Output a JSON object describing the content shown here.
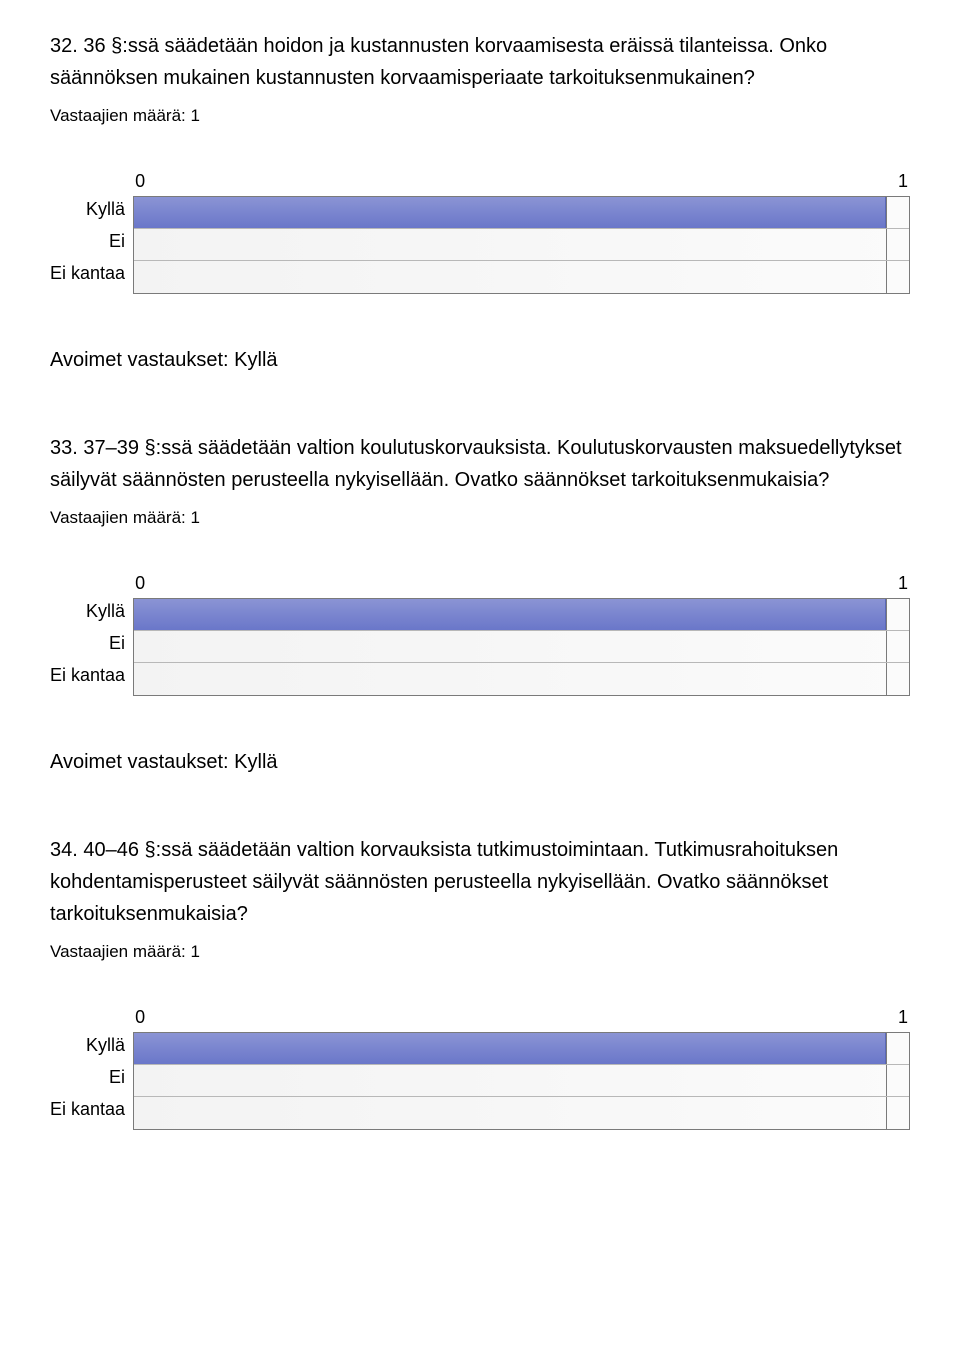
{
  "sections": [
    {
      "question": "32. 36 §:ssä säädetään hoidon ja kustannusten korvaamisesta eräissä tilanteissa. Onko säännöksen mukainen kustannusten korvaamisperiaate tarkoituksenmukainen?",
      "respondent_label": "Vastaajien määrä: 1",
      "chart": {
        "type": "bar",
        "x_ticks": [
          "0",
          "1"
        ],
        "xlim": [
          0,
          1
        ],
        "categories": [
          "Kyllä",
          "Ei",
          "Ei kantaa"
        ],
        "values": [
          1,
          0,
          0
        ],
        "bar_color": "#7a85cf",
        "background_gradient_from": "#f3f3f3",
        "background_gradient_to": "#fbfbfb",
        "border_color": "#7a7a7a",
        "row_divider_color": "#b8b8b8",
        "label_fontsize": 18,
        "tick_right_fraction": 0.97
      },
      "open_answers_label": "Avoimet vastaukset: Kyllä"
    },
    {
      "question": "33. 37–39 §:ssä säädetään valtion koulutuskorvauksista. Koulutuskorvausten maksuedellytykset säilyvät säännösten perusteella nykyisellään. Ovatko säännökset tarkoituksenmukaisia?",
      "respondent_label": "Vastaajien määrä: 1",
      "chart": {
        "type": "bar",
        "x_ticks": [
          "0",
          "1"
        ],
        "xlim": [
          0,
          1
        ],
        "categories": [
          "Kyllä",
          "Ei",
          "Ei kantaa"
        ],
        "values": [
          1,
          0,
          0
        ],
        "bar_color": "#7a85cf",
        "background_gradient_from": "#f3f3f3",
        "background_gradient_to": "#fbfbfb",
        "border_color": "#7a7a7a",
        "row_divider_color": "#b8b8b8",
        "label_fontsize": 18,
        "tick_right_fraction": 0.97
      },
      "open_answers_label": "Avoimet vastaukset: Kyllä"
    },
    {
      "question": "34. 40–46 §:ssä säädetään valtion korvauksista tutkimustoimintaan. Tutkimusrahoituksen kohdentamisperusteet säilyvät säännösten perusteella nykyisellään. Ovatko säännökset tarkoituksenmukaisia?",
      "respondent_label": "Vastaajien määrä: 1",
      "chart": {
        "type": "bar",
        "x_ticks": [
          "0",
          "1"
        ],
        "xlim": [
          0,
          1
        ],
        "categories": [
          "Kyllä",
          "Ei",
          "Ei kantaa"
        ],
        "values": [
          1,
          0,
          0
        ],
        "bar_color": "#7a85cf",
        "background_gradient_from": "#f3f3f3",
        "background_gradient_to": "#fbfbfb",
        "border_color": "#7a7a7a",
        "row_divider_color": "#b8b8b8",
        "label_fontsize": 18,
        "tick_right_fraction": 0.97
      },
      "open_answers_label": ""
    }
  ]
}
